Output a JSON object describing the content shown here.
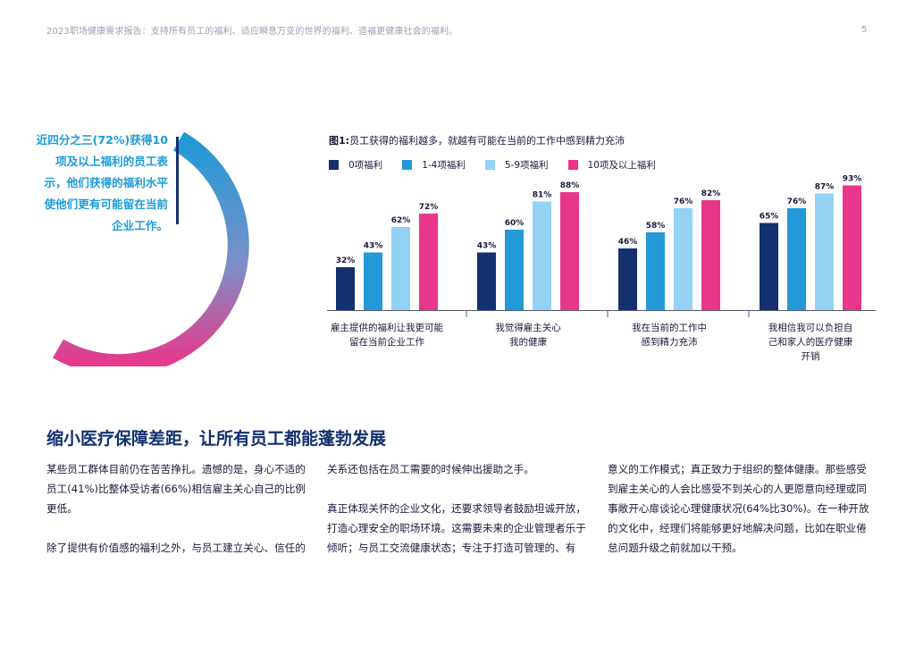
{
  "header": {
    "running_title": "2023职场健康需求报告：支持所有员工的福利、适应瞬息万变的世界的福利、造福更健康社会的福利。",
    "page_number": "5"
  },
  "callout": {
    "text": "近四分之三(72%)获得10项及以上福利的员工表示，他们获得的福利水平使他们更有可能留在当前企业工作。",
    "ring_colors": [
      "#1f9ad6",
      "#e8388a"
    ]
  },
  "figure": {
    "label": "图1:",
    "title": "员工获得的福利越多，就越有可能在当前的工作中感到精力充沛"
  },
  "chart_data": {
    "type": "bar",
    "title": "员工获得的福利越多，就越有可能在当前的工作中感到精力充沛",
    "categories": [
      "雇主提供的福利让我更可能留在当前企业工作",
      "我觉得雇主关心我的健康",
      "我在当前的工作中感到精力充沛",
      "我相信我可以负担自己和家人的医疗健康开销"
    ],
    "category_lines": [
      [
        "雇主提供的福利让我更可能",
        "留在当前企业工作"
      ],
      [
        "我觉得雇主关心",
        "我的健康"
      ],
      [
        "我在当前的工作中",
        "感到精力充沛"
      ],
      [
        "我相信我可以负担自",
        "己和家人的医疗健康",
        "开销"
      ]
    ],
    "series": [
      {
        "name": "0项福利",
        "color": "#13306f",
        "values": [
          32,
          43,
          46,
          65
        ]
      },
      {
        "name": "1-4项福利",
        "color": "#2399d8",
        "values": [
          43,
          60,
          58,
          76
        ]
      },
      {
        "name": "5-9项福利",
        "color": "#93d2f4",
        "values": [
          62,
          81,
          76,
          87
        ]
      },
      {
        "name": "10项及以上福利",
        "color": "#e8368a",
        "values": [
          72,
          88,
          82,
          93
        ]
      }
    ],
    "value_suffix": "%",
    "ylim": [
      0,
      100
    ],
    "grid": false,
    "legend_position": "top-left"
  },
  "section": {
    "title": "缩小医疗保障差距，让所有员工都能蓬勃发展"
  },
  "body": {
    "col1": [
      "某些员工群体目前仍在苦苦挣扎。遗憾的是，身心不适的员工(41%)比整体受访者(66%)相信雇主关心自己的比例更低。",
      "除了提供有价值感的福利之外，与员工建立关心、信任的"
    ],
    "col2": [
      "关系还包括在员工需要的时候伸出援助之手。",
      "真正体现关怀的企业文化，还要求领导者鼓励坦诚开放，打造心理安全的职场环境。这需要未来的企业管理者乐于倾听；与员工交流健康状态；专注于打造可管理的、有"
    ],
    "col3": [
      "意义的工作模式；真正致力于组织的整体健康。那些感受到雇主关心的人会比感受不到关心的人更愿意向经理或同事敞开心扉谈论心理健康状况(64%比30%)。在一种开放的文化中，经理们将能够更好地解决问题，比如在职业倦怠问题升级之前就加以干预。"
    ]
  }
}
